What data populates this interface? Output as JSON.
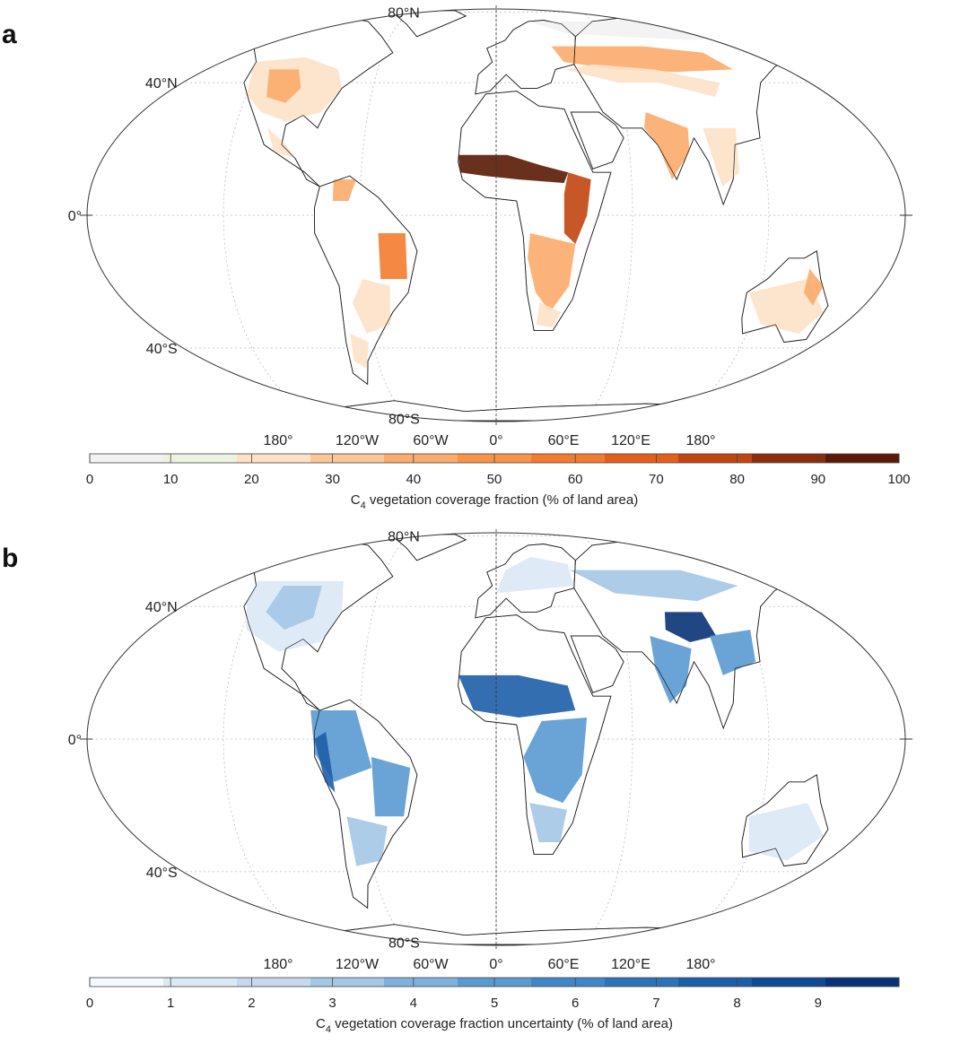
{
  "panels": [
    {
      "id": "a",
      "letter": "a",
      "colorbar": {
        "ticks": [
          "0",
          "10",
          "20",
          "30",
          "40",
          "50",
          "60",
          "70",
          "80",
          "90",
          "100"
        ],
        "colors": [
          "#f2f2f2",
          "#ecf3df",
          "#fde1c7",
          "#fcc796",
          "#fbab6a",
          "#f99447",
          "#f47b2e",
          "#e4601a",
          "#c24510",
          "#8d2d0b",
          "#5a1a06"
        ],
        "title_prefix": "C",
        "title_sub": "4",
        "title_suffix": " vegetation coverage fraction (% of land area)"
      }
    },
    {
      "id": "b",
      "letter": "b",
      "colorbar": {
        "ticks": [
          "0",
          "1",
          "2",
          "3",
          "4",
          "5",
          "6",
          "7",
          "8",
          "9",
          ""
        ],
        "colors": [
          "#f4f9fe",
          "#dbe8f6",
          "#c4d9ee",
          "#a3c7e5",
          "#7eb2dc",
          "#5a9ad1",
          "#4186c6",
          "#2e73b9",
          "#1d5ea9",
          "#0e4a95",
          "#083377"
        ],
        "title_prefix": "C",
        "title_sub": "4",
        "title_suffix": " vegetation coverage fraction uncertainty (% of land area)"
      }
    }
  ],
  "lat_labels": [
    "80°N",
    "40°N",
    "0°",
    "40°S",
    "80°S"
  ],
  "lon_labels": [
    "180°",
    "120°W",
    "60°W",
    "0°",
    "60°E",
    "120°E",
    "180°"
  ],
  "regions_a": {
    "colors": {
      "low": "#fde1c7",
      "mid": "#fbab6a",
      "high": "#f47b2e",
      "vhigh": "#c24510",
      "max": "#5a1a06",
      "grey": "#f2f2f2"
    }
  },
  "regions_b": {
    "colors": {
      "low": "#dbe8f6",
      "mid": "#a3c7e5",
      "high": "#5a9ad1",
      "vhigh": "#1d5ea9",
      "max": "#083377"
    }
  }
}
